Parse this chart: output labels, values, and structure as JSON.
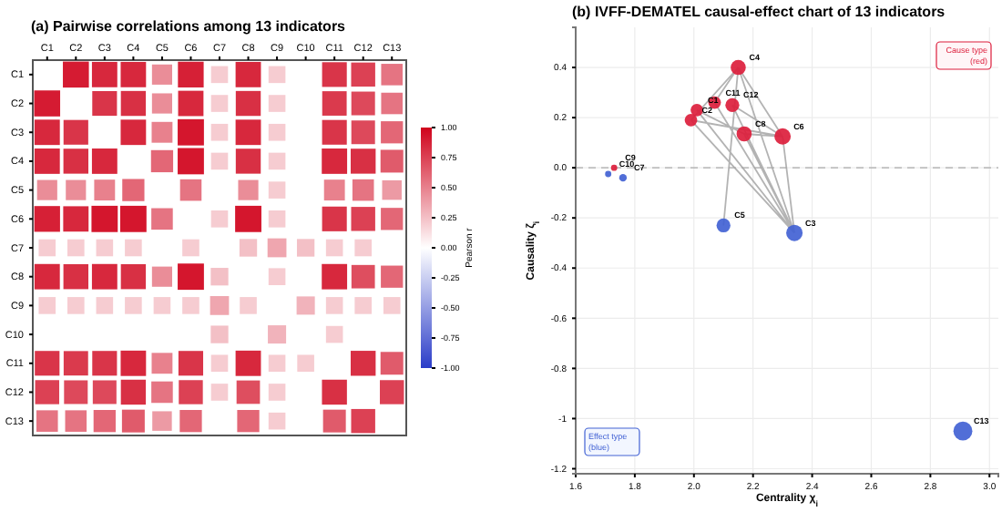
{
  "chart_data": [
    {
      "type": "heatmap",
      "title": "(a) Pairwise correlations among 13 indicators",
      "clabel": "Pearson r",
      "categories": [
        "C1",
        "C2",
        "C3",
        "C4",
        "C5",
        "C6",
        "C7",
        "C8",
        "C9",
        "C10",
        "C11",
        "C12",
        "C13"
      ],
      "y_categories": [
        "C1",
        "C2",
        "C3",
        "C4",
        "C5",
        "C6",
        "C7",
        "C8",
        "C9",
        "C10",
        "C11",
        "C12",
        "C13"
      ],
      "cells": [
        [
          null,
          0.9,
          0.85,
          0.85,
          0.45,
          0.88,
          0.2,
          0.85,
          0.2,
          0,
          0.8,
          0.75,
          0.55
        ],
        [
          0.9,
          null,
          0.8,
          0.82,
          0.45,
          0.85,
          0.2,
          0.82,
          0.2,
          0,
          0.78,
          0.72,
          0.55
        ],
        [
          0.85,
          0.8,
          null,
          0.85,
          0.5,
          0.92,
          0.2,
          0.85,
          0.2,
          0,
          0.8,
          0.72,
          0.6
        ],
        [
          0.85,
          0.82,
          0.85,
          null,
          0.6,
          0.92,
          0.2,
          0.82,
          0.2,
          0,
          0.85,
          0.82,
          0.65
        ],
        [
          0.45,
          0.45,
          0.5,
          0.6,
          null,
          0.55,
          0,
          0.45,
          0.2,
          0,
          0.5,
          0.55,
          0.4
        ],
        [
          0.88,
          0.85,
          0.92,
          0.92,
          0.55,
          null,
          0.2,
          0.92,
          0.2,
          0,
          0.8,
          0.75,
          0.6
        ],
        [
          0.2,
          0.2,
          0.2,
          0.2,
          0,
          0.2,
          null,
          0.25,
          0.35,
          0.25,
          0.2,
          0.2,
          0
        ],
        [
          0.85,
          0.82,
          0.85,
          0.82,
          0.45,
          0.92,
          0.25,
          null,
          0.2,
          0,
          0.85,
          0.7,
          0.6
        ],
        [
          0.2,
          0.2,
          0.2,
          0.2,
          0.2,
          0.2,
          0.35,
          0.2,
          null,
          0.3,
          0.2,
          0.2,
          0.2
        ],
        [
          0,
          0,
          0,
          0,
          0,
          0,
          0.25,
          0,
          0.3,
          null,
          0.2,
          0,
          0
        ],
        [
          0.8,
          0.78,
          0.8,
          0.85,
          0.5,
          0.8,
          0.2,
          0.85,
          0.2,
          0.2,
          null,
          0.82,
          0.65
        ],
        [
          0.75,
          0.72,
          0.72,
          0.82,
          0.55,
          0.75,
          0.2,
          0.7,
          0.2,
          0,
          0.82,
          null,
          0.75
        ],
        [
          0.55,
          0.55,
          0.6,
          0.65,
          0.4,
          0.6,
          0,
          0.6,
          0.2,
          0,
          0.65,
          0.75,
          null
        ]
      ],
      "clim": [
        -1,
        1
      ],
      "cticks": [
        {
          "value": -1,
          "label": "-1.00"
        },
        {
          "value": -0.75,
          "label": "-0.75"
        },
        {
          "value": -0.5,
          "label": "-0.50"
        },
        {
          "value": -0.25,
          "label": "-0.25"
        },
        {
          "value": 0,
          "label": "0.00"
        },
        {
          "value": 0.25,
          "label": "0.25"
        },
        {
          "value": 0.5,
          "label": "0.50"
        },
        {
          "value": 0.75,
          "label": "0.75"
        },
        {
          "value": 1,
          "label": "1.00"
        }
      ]
    },
    {
      "type": "bubble",
      "title": "(b) IVFF-DEMATEL causal-effect chart of 13 indicators",
      "xlabel": "Centrality χ$_{i}$",
      "ylabel": "Causality ζ$_{i}$",
      "xlim": [
        1.6,
        3.03
      ],
      "ylim": [
        -1.22,
        0.56
      ],
      "xticks": [
        1.6,
        1.8,
        {
          "value": 2,
          "label": "2.0"
        },
        2.2,
        2.4,
        2.6,
        2.8,
        {
          "value": 3,
          "label": "3.0"
        }
      ],
      "yticks": [
        -1.2,
        -1,
        -0.8,
        -0.6,
        -0.4,
        -0.2,
        {
          "value": 0,
          "label": "0.0"
        },
        0.2,
        0.4
      ],
      "grid": true,
      "ref_lines": [
        {
          "axis": "y",
          "value": 0,
          "color": "#aaaaaa",
          "line_style": "dashed"
        }
      ],
      "series": [
        {
          "type": "line",
          "color": "#a6a6a6",
          "x": [
            2.34,
            1.99,
            null,
            2.34,
            2.01,
            null,
            2.34,
            2.07,
            null,
            2.34,
            2.13,
            null,
            2.34,
            2.15,
            null,
            2.34,
            2.17,
            null,
            2.34,
            2.3,
            null,
            2.1,
            2.15,
            null,
            2.15,
            2.3,
            null,
            2.15,
            1.99,
            null,
            2.15,
            2.07,
            null,
            1.99,
            2.3,
            null,
            2.01,
            2.17,
            null,
            2.13,
            2.3,
            null,
            2.17,
            2.3
          ],
          "values": [
            -0.26,
            0.19,
            null,
            -0.26,
            0.23,
            null,
            -0.26,
            0.26,
            null,
            -0.26,
            0.25,
            null,
            -0.26,
            0.4,
            null,
            -0.26,
            0.135,
            null,
            -0.26,
            0.125,
            null,
            -0.23,
            0.4,
            null,
            0.4,
            0.125,
            null,
            0.4,
            0.19,
            null,
            0.4,
            0.26,
            null,
            0.19,
            0.125,
            null,
            0.23,
            0.135,
            null,
            0.25,
            0.125,
            null,
            0.135,
            0.125
          ]
        },
        {
          "type": "bubble",
          "x": [
            2.01,
            1.99,
            2.34,
            2.15,
            2.1,
            2.3,
            1.76,
            2.17,
            1.73,
            1.71,
            2.07,
            2.13,
            2.91
          ],
          "values": [
            0.23,
            0.19,
            -0.26,
            0.4,
            -0.23,
            0.125,
            -0.04,
            0.135,
            0.0,
            -0.025,
            0.26,
            0.25,
            -1.05
          ],
          "sizes": [
            0.44,
            0.44,
            0.75,
            0.64,
            0.54,
            0.75,
            0.16,
            0.64,
            0.11,
            0.11,
            0.44,
            0.54,
            1
          ],
          "colors": [
            "#dc1e3c",
            "#dc1e3c",
            "#4262d4",
            "#dc1e3c",
            "#4262d4",
            "#dc1e3c",
            "#4262d4",
            "#dc1e3c",
            "#dc1e3c",
            "#4262d4",
            "#dc1e3c",
            "#dc1e3c",
            "#4262d4"
          ]
        }
      ],
      "annotations": [
        {
          "text": "C1",
          "x": 2.01,
          "y": 0.23
        },
        {
          "text": "C2",
          "x": 1.99,
          "y": 0.19
        },
        {
          "text": "C3",
          "x": 2.34,
          "y": -0.26
        },
        {
          "text": "C4",
          "x": 2.15,
          "y": 0.4
        },
        {
          "text": "C5",
          "x": 2.1,
          "y": -0.23
        },
        {
          "text": "C6",
          "x": 2.3,
          "y": 0.125
        },
        {
          "text": "C7",
          "x": 1.76,
          "y": -0.04
        },
        {
          "text": "C8",
          "x": 2.17,
          "y": 0.135
        },
        {
          "text": "C9",
          "x": 1.73,
          "y": 0.0
        },
        {
          "text": "C10",
          "x": 1.71,
          "y": -0.025
        },
        {
          "text": "C11",
          "x": 2.07,
          "y": 0.26
        },
        {
          "text": "C12",
          "x": 2.13,
          "y": 0.25
        },
        {
          "text": "C13",
          "x": 2.91,
          "y": -1.05
        },
        "Cause type\n(red)",
        "Effect type\n(blue)"
      ]
    }
  ]
}
